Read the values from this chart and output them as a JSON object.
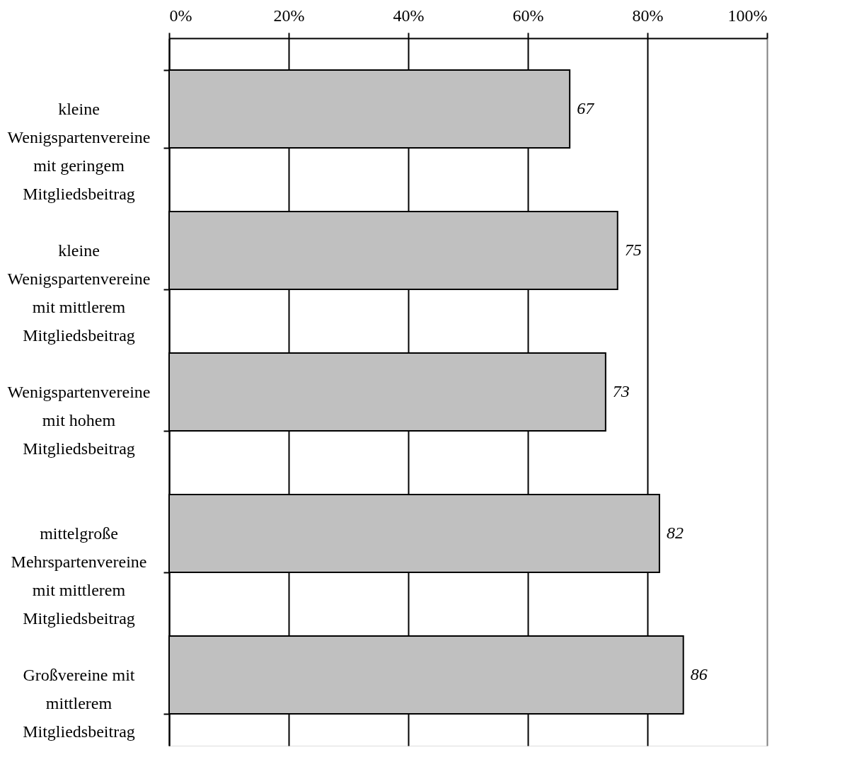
{
  "chart_data": {
    "type": "bar",
    "orientation": "horizontal",
    "categories": [
      "kleine Wenigspartenvereine mit geringem Mitgliedsbeitrag",
      "kleine Wenigspartenvereine mit mittlerem Mitgliedsbeitrag",
      "Wenigspartenvereine mit hohem Mitgliedsbeitrag",
      "mittelgroße Mehrspartenvereine mit mittlerem Mitgliedsbeitrag",
      "Großvereine mit mittlerem Mitgliedsbeitrag"
    ],
    "values": [
      67,
      75,
      73,
      82,
      86
    ],
    "color": "#c0c0c0",
    "xlim": [
      0,
      100
    ],
    "xticks": [
      {
        "value": 0,
        "label": "0%"
      },
      {
        "value": 20,
        "label": "20%"
      },
      {
        "value": 40,
        "label": "40%"
      },
      {
        "value": 60,
        "label": "60%"
      },
      {
        "value": 80,
        "label": "80%"
      },
      {
        "value": 100,
        "label": "100%"
      }
    ],
    "grid": "x",
    "data_labels": true
  }
}
